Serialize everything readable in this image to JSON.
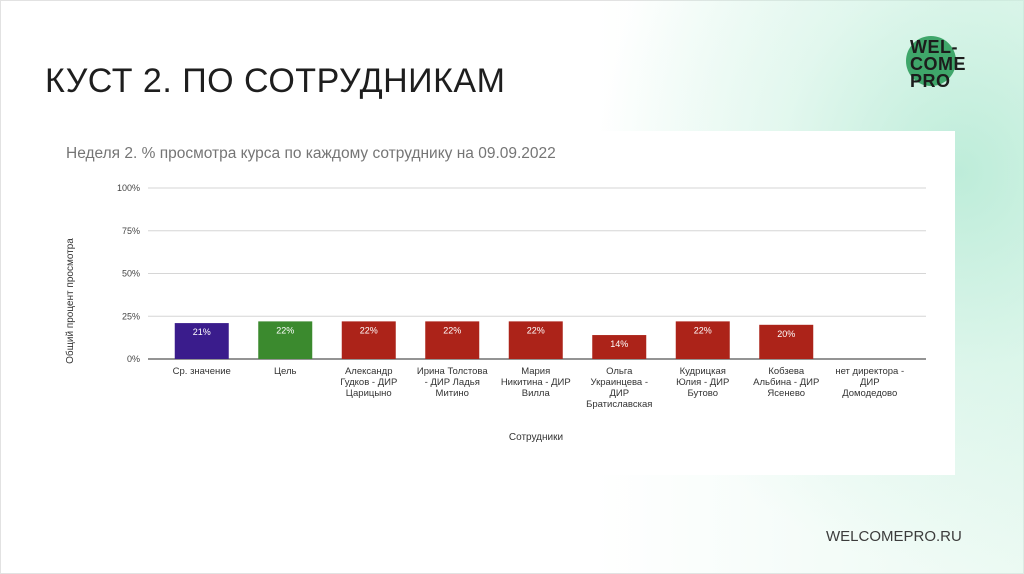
{
  "slide": {
    "title": "КУСТ 2. ПО СОТРУДНИКАМ",
    "footer": "WELCOMEPRO.RU",
    "logo": {
      "line1": "WEL-",
      "line2": "COME",
      "line3": "PRO",
      "color": "#3fa66a"
    }
  },
  "chart_data": {
    "type": "bar",
    "title": "Неделя 2. % просмотра курса по каждому сотруднику на 09.09.2022",
    "xlabel": "Сотрудники",
    "ylabel": "Общий процент просмотра",
    "ylim": [
      0,
      100
    ],
    "yticks": [
      0,
      25,
      50,
      75,
      100
    ],
    "ytick_labels": [
      "0%",
      "25%",
      "50%",
      "75%",
      "100%"
    ],
    "grid": true,
    "categories": [
      [
        "Ср. значение"
      ],
      [
        "Цель"
      ],
      [
        "Александр",
        "Гудков - ДИР",
        "Царицыно"
      ],
      [
        "Ирина Толстова",
        "- ДИР Ладья",
        "Митино"
      ],
      [
        "Мария",
        "Никитина - ДИР",
        "Вилла"
      ],
      [
        "Ольга",
        "Украинцева -",
        "ДИР",
        "Братиславская"
      ],
      [
        "Кудрицкая",
        "Юлия - ДИР",
        "Бутово"
      ],
      [
        "Кобзева",
        "Альбина - ДИР",
        "Ясенево"
      ],
      [
        "нет директора -",
        "ДИР",
        "Домодедово"
      ]
    ],
    "values": [
      21,
      22,
      22,
      22,
      22,
      14,
      22,
      20,
      0
    ],
    "value_labels": [
      "21%",
      "22%",
      "22%",
      "22%",
      "22%",
      "14%",
      "22%",
      "20%",
      ""
    ],
    "colors": [
      "#3a1c8c",
      "#3b8a2e",
      "#ac2319",
      "#ac2319",
      "#ac2319",
      "#ac2319",
      "#ac2319",
      "#ac2319",
      "#ac2319"
    ]
  }
}
